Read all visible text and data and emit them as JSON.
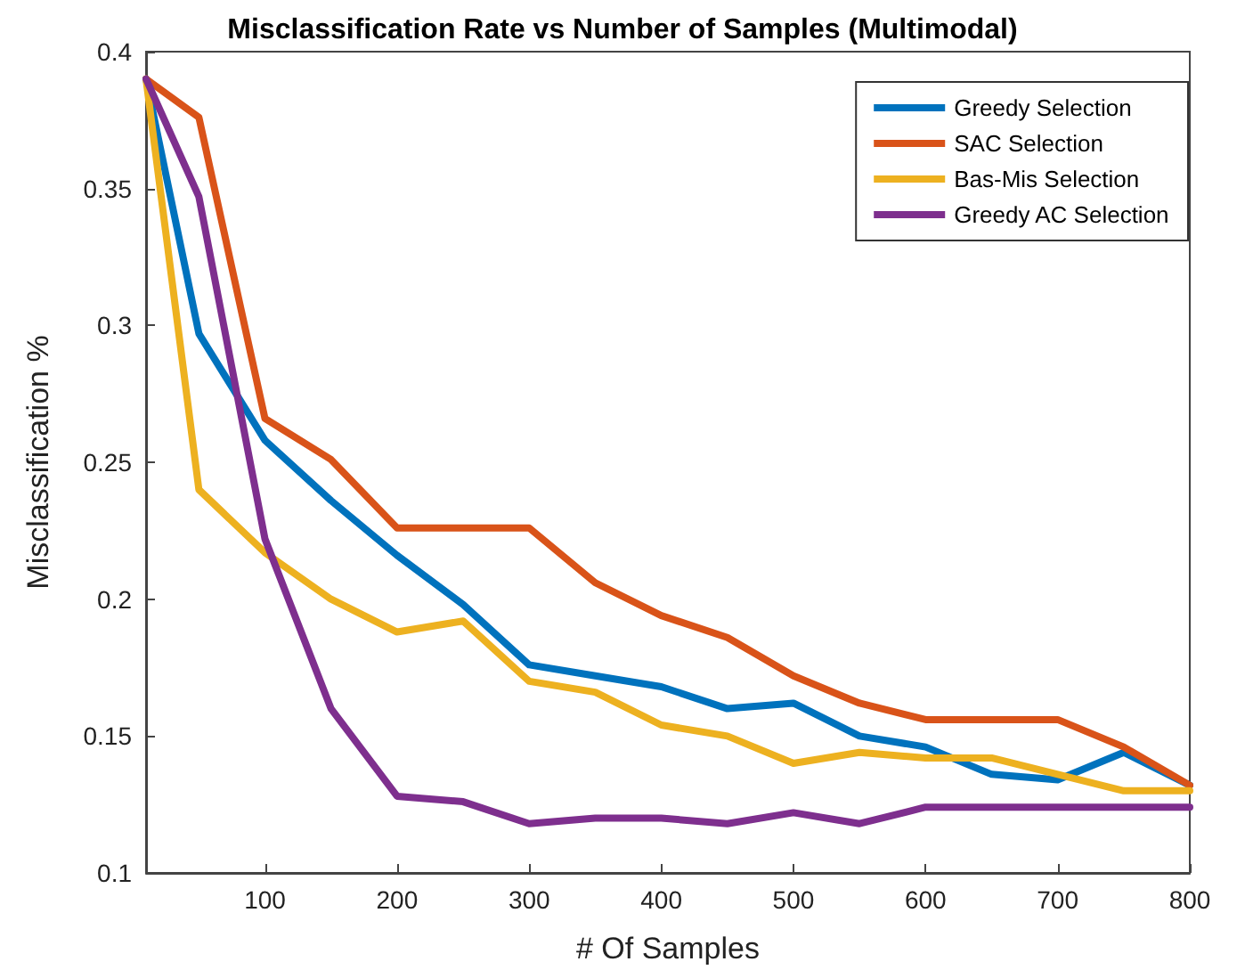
{
  "chart_data": {
    "type": "line",
    "title": "Misclassification Rate vs Number of Samples (Multimodal)",
    "xlabel": "# Of Samples",
    "ylabel": "Misclassification %",
    "x": [
      10,
      50,
      100,
      150,
      200,
      250,
      300,
      350,
      400,
      450,
      500,
      550,
      600,
      650,
      700,
      750,
      800
    ],
    "series": [
      {
        "name": "Greedy Selection",
        "color": "#0072bd",
        "values": [
          0.39,
          0.297,
          0.258,
          0.236,
          0.216,
          0.198,
          0.176,
          0.172,
          0.168,
          0.16,
          0.162,
          0.15,
          0.146,
          0.136,
          0.134,
          0.144,
          0.132
        ]
      },
      {
        "name": "SAC Selection",
        "color": "#d95319",
        "values": [
          0.39,
          0.376,
          0.266,
          0.251,
          0.226,
          0.226,
          0.226,
          0.206,
          0.194,
          0.186,
          0.172,
          0.162,
          0.156,
          0.156,
          0.156,
          0.146,
          0.132
        ]
      },
      {
        "name": "Bas-Mis Selection",
        "color": "#edb120",
        "values": [
          0.39,
          0.24,
          0.217,
          0.2,
          0.188,
          0.192,
          0.17,
          0.166,
          0.154,
          0.15,
          0.14,
          0.144,
          0.142,
          0.142,
          0.136,
          0.13,
          0.13
        ]
      },
      {
        "name": "Greedy AC Selection",
        "color": "#7e2f8e",
        "values": [
          0.39,
          0.347,
          0.222,
          0.16,
          0.128,
          0.126,
          0.118,
          0.12,
          0.12,
          0.118,
          0.122,
          0.118,
          0.124,
          0.124,
          0.124,
          0.124,
          0.124
        ]
      }
    ],
    "xlim": [
      10,
      800
    ],
    "xticks": [
      100,
      200,
      300,
      400,
      500,
      600,
      700,
      800
    ],
    "ylim": [
      0.1,
      0.4
    ],
    "yticks": [
      0.1,
      0.15,
      0.2,
      0.25,
      0.3,
      0.35,
      0.4
    ],
    "grid": false,
    "legend": "top right",
    "marker": "none",
    "line_style": "solid"
  }
}
